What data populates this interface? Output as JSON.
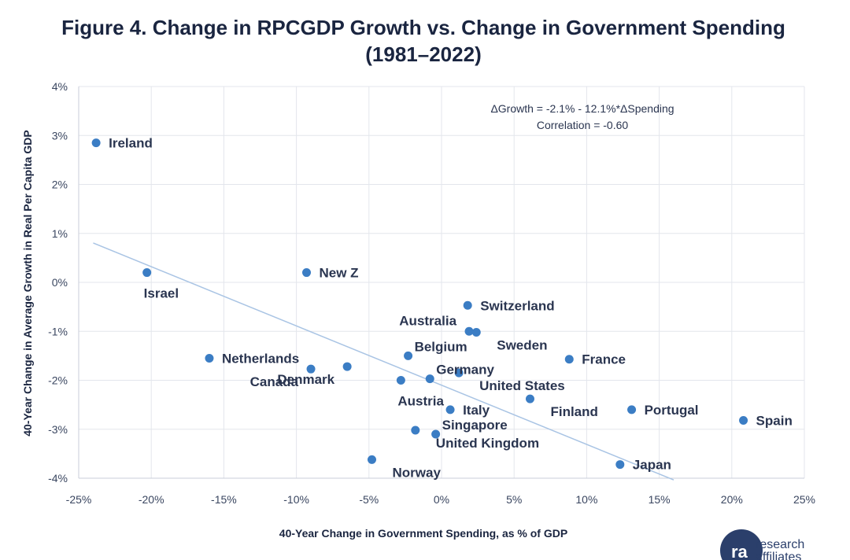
{
  "chart_data": {
    "type": "scatter",
    "title": "Figure 4. Change in RPCGDP Growth vs. Change in Government Spending",
    "subtitle": "(1981–2022)",
    "xlabel": "40-Year Change in Government Spending, as % of GDP",
    "ylabel": "40-Year Change in Average Growth in Real Per Capita GDP",
    "xlim": [
      -25,
      25
    ],
    "ylim": [
      -4,
      4
    ],
    "x_ticks": [
      -25,
      -20,
      -15,
      -10,
      -5,
      0,
      5,
      10,
      15,
      20,
      25
    ],
    "y_ticks": [
      -4,
      -3,
      -2,
      -1,
      0,
      1,
      2,
      3,
      4
    ],
    "x_tick_labels": [
      "-25%",
      "-20%",
      "-15%",
      "-10%",
      "-5%",
      "0%",
      "5%",
      "10%",
      "15%",
      "20%",
      "25%"
    ],
    "y_tick_labels": [
      "-4%",
      "-3%",
      "-2%",
      "-1%",
      "0%",
      "1%",
      "2%",
      "3%",
      "4%"
    ],
    "grid": true,
    "annotation_lines": [
      "ΔGrowth = -2.1% - 12.1%*ΔSpending",
      "Correlation = -0.60"
    ],
    "trendline": {
      "x_start": -24,
      "x_end": 16,
      "intercept": -2.1,
      "slope": -0.121
    },
    "points": [
      {
        "label": "Ireland",
        "x": -23.8,
        "y": 2.85,
        "pos": "right"
      },
      {
        "label": "Israel",
        "x": -20.3,
        "y": 0.2,
        "pos": "below"
      },
      {
        "label": "New Z",
        "x": -9.3,
        "y": 0.2,
        "pos": "right"
      },
      {
        "label": "Netherlands",
        "x": -16.0,
        "y": -1.55,
        "pos": "right"
      },
      {
        "label": "Canada",
        "x": -9.0,
        "y": -1.77,
        "pos": "left-below"
      },
      {
        "label": "Denmark",
        "x": -6.5,
        "y": -1.72,
        "pos": "left-below"
      },
      {
        "label": "Austria",
        "x": -2.8,
        "y": -2.0,
        "pos": "below"
      },
      {
        "label": "Belgium",
        "x": -2.3,
        "y": -1.5,
        "pos": "right-above"
      },
      {
        "label": "Germany",
        "x": -0.8,
        "y": -1.97,
        "pos": "right-above"
      },
      {
        "label": "United States",
        "x": 1.2,
        "y": -1.85,
        "pos": "right-below"
      },
      {
        "label": "Australia",
        "x": 1.9,
        "y": -1.0,
        "pos": "left-above"
      },
      {
        "label": "Sweden",
        "x": 2.4,
        "y": -1.02,
        "pos": "right-below"
      },
      {
        "label": "Switzerland",
        "x": 1.8,
        "y": -0.47,
        "pos": "right"
      },
      {
        "label": "France",
        "x": 8.8,
        "y": -1.57,
        "pos": "right"
      },
      {
        "label": "Finland",
        "x": 6.1,
        "y": -2.38,
        "pos": "right-below"
      },
      {
        "label": "Italy",
        "x": 0.6,
        "y": -2.6,
        "pos": "right"
      },
      {
        "label": "Portugal",
        "x": 13.1,
        "y": -2.6,
        "pos": "right"
      },
      {
        "label": "Spain",
        "x": 20.8,
        "y": -2.82,
        "pos": "right"
      },
      {
        "label": "Singapore",
        "x": -0.4,
        "y": -3.1,
        "pos": "right-above"
      },
      {
        "label": "United Kingdom",
        "x": -1.8,
        "y": -3.02,
        "pos": "right-below"
      },
      {
        "label": "Norway",
        "x": -4.8,
        "y": -3.62,
        "pos": "right-below"
      },
      {
        "label": "Japan",
        "x": 12.3,
        "y": -3.72,
        "pos": "right"
      }
    ]
  },
  "brand": {
    "line1": "research",
    "line2": "affiliates"
  }
}
